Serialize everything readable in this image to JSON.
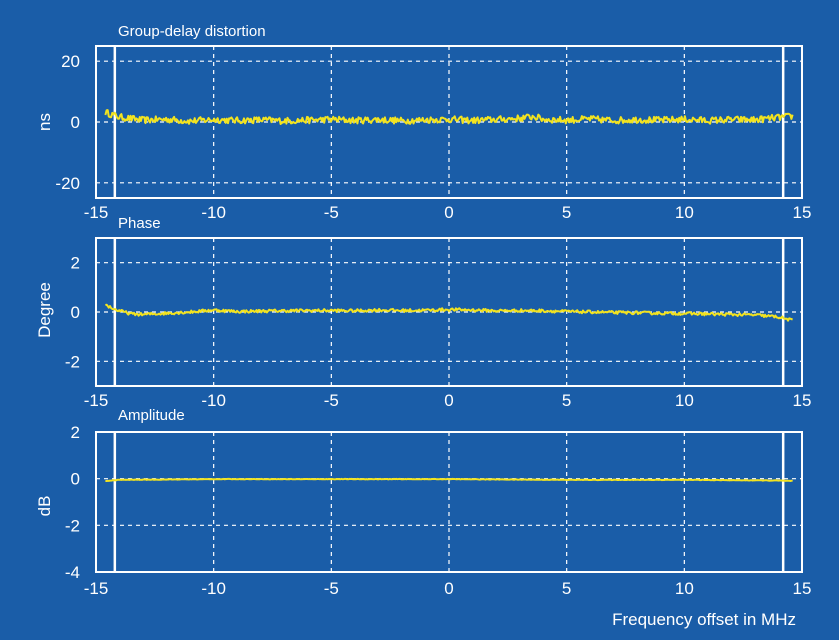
{
  "colors": {
    "background": "#1a5da8",
    "frame": "#ffffff",
    "grid": "#ffffff",
    "trace": "#f2e320"
  },
  "xlabel": "Frequency offset in MHz",
  "chart_data": [
    {
      "type": "line",
      "title": "Group-delay distortion",
      "ylabel": "ns",
      "xlim": [
        -15,
        15
      ],
      "ylim": [
        -25,
        25
      ],
      "x_ticks": [
        "-15",
        "-10",
        "-5",
        "0",
        "5",
        "10",
        "15"
      ],
      "y_ticks": [
        {
          "value": 20,
          "label": "20"
        },
        {
          "value": 0,
          "label": "0"
        },
        {
          "value": -20,
          "label": "-20"
        }
      ],
      "grid": true,
      "markers_x": [
        -14.2,
        14.2
      ],
      "x": [
        -14.6,
        -14,
        -13,
        -12,
        -11,
        -10,
        -9,
        -8,
        -7,
        -6,
        -5,
        -4,
        -3,
        -2,
        -1,
        0,
        1,
        2,
        3,
        3.6,
        4,
        5,
        6,
        7,
        8,
        9,
        10,
        11,
        12,
        13,
        14,
        14.6
      ],
      "values": [
        3.2,
        1.6,
        0.6,
        0.9,
        0.3,
        0.8,
        0.5,
        0.7,
        0.4,
        0.6,
        0.9,
        0.5,
        0.8,
        0.4,
        0.7,
        0.9,
        0.5,
        0.8,
        1.2,
        1.8,
        0.9,
        0.6,
        1.0,
        0.5,
        0.8,
        0.6,
        0.9,
        0.5,
        0.8,
        0.7,
        1.5,
        1.9
      ],
      "noise": 1.1
    },
    {
      "type": "line",
      "title": "Phase",
      "ylabel": "Degree",
      "xlim": [
        -15,
        15
      ],
      "ylim": [
        -3,
        3
      ],
      "x_ticks": [
        "-15",
        "-10",
        "-5",
        "0",
        "5",
        "10",
        "15"
      ],
      "y_ticks": [
        {
          "value": 2,
          "label": "2"
        },
        {
          "value": 0,
          "label": "0"
        },
        {
          "value": -2,
          "label": "-2"
        }
      ],
      "grid": true,
      "markers_x": [
        -14.2,
        14.2
      ],
      "x": [
        -14.6,
        -14.2,
        -13.5,
        -13,
        -12,
        -11,
        -10,
        -9,
        -8,
        -7,
        -6,
        -5,
        -4,
        -3,
        -2,
        -1,
        0,
        1,
        2,
        3,
        4,
        5,
        6,
        7,
        8,
        9,
        10,
        11,
        12,
        13,
        14,
        14.6
      ],
      "values": [
        0.3,
        0.1,
        -0.08,
        -0.1,
        -0.05,
        0.0,
        0.08,
        0.02,
        0.04,
        0.05,
        0.06,
        0.06,
        0.05,
        0.08,
        0.06,
        0.07,
        0.1,
        0.08,
        0.05,
        0.06,
        0.05,
        0.02,
        0.0,
        -0.02,
        -0.03,
        -0.05,
        -0.06,
        -0.08,
        -0.1,
        -0.12,
        -0.2,
        -0.35
      ],
      "noise": 0.06
    },
    {
      "type": "line",
      "title": "Amplitude",
      "ylabel": "dB",
      "xlim": [
        -15,
        15
      ],
      "ylim": [
        -4,
        2
      ],
      "x_ticks": [
        "-15",
        "-10",
        "-5",
        "0",
        "5",
        "10",
        "15"
      ],
      "y_ticks": [
        {
          "value": 2,
          "label": "2"
        },
        {
          "value": 0,
          "label": "0"
        },
        {
          "value": -2,
          "label": "-2"
        },
        {
          "value": -4,
          "label": "-4"
        }
      ],
      "grid": true,
      "markers_x": [
        -14.2,
        14.2
      ],
      "x": [
        -14.6,
        -14,
        -10,
        -5,
        0,
        5,
        10,
        14,
        14.6
      ],
      "values": [
        -0.1,
        -0.05,
        -0.02,
        -0.02,
        -0.02,
        -0.05,
        -0.05,
        -0.08,
        -0.1
      ],
      "noise": 0.01
    }
  ]
}
